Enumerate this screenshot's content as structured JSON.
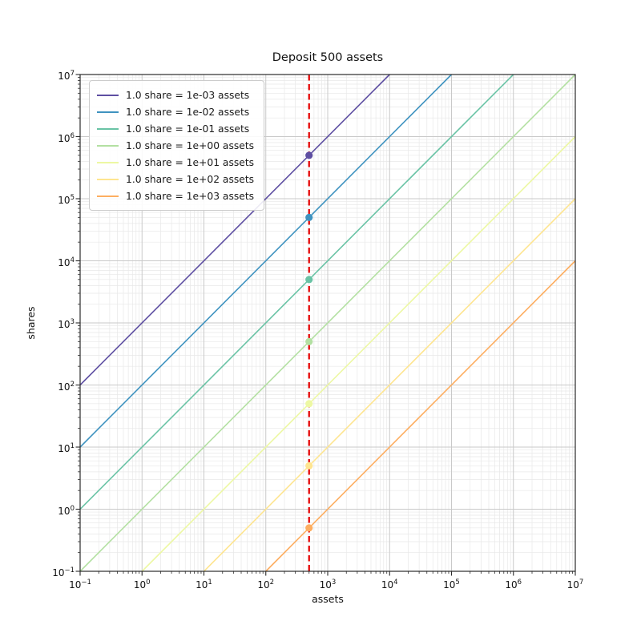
{
  "chart_data": {
    "type": "line",
    "title": "Deposit 500 assets",
    "xlabel": "assets",
    "ylabel": "shares",
    "x_scale": "log",
    "y_scale": "log",
    "xlim": [
      0.1,
      10000000
    ],
    "ylim": [
      0.1,
      10000000
    ],
    "x_tick_exponents": [
      -1,
      0,
      1,
      2,
      3,
      4,
      5,
      6,
      7
    ],
    "y_tick_exponents": [
      -1,
      0,
      1,
      2,
      3,
      4,
      5,
      6,
      7
    ],
    "grid": {
      "major_color": "#c9c9c9",
      "minor_color": "#e8e8e8",
      "minor_on": true
    },
    "frame_color": "#2b2b2b",
    "legend_position": "upper left",
    "deposit_line": {
      "assets": 500,
      "color": "#e50000",
      "style": "dashed"
    },
    "series": [
      {
        "label": "1.0 share = 1e-03 assets",
        "color": "#5e4fa2",
        "rate_exponent": -3,
        "point": {
          "assets": 500,
          "shares": 500000
        }
      },
      {
        "label": "1.0 share = 1e-02 assets",
        "color": "#3f93c0",
        "rate_exponent": -2,
        "point": {
          "assets": 500,
          "shares": 50000
        }
      },
      {
        "label": "1.0 share = 1e-01 assets",
        "color": "#69c3a5",
        "rate_exponent": -1,
        "point": {
          "assets": 500,
          "shares": 5000
        }
      },
      {
        "label": "1.0 share = 1e+00 assets",
        "color": "#b3e0a2",
        "rate_exponent": 0,
        "point": {
          "assets": 500,
          "shares": 500
        }
      },
      {
        "label": "1.0 share = 1e+01 assets",
        "color": "#edf8a3",
        "rate_exponent": 1,
        "point": {
          "assets": 500,
          "shares": 50
        }
      },
      {
        "label": "1.0 share = 1e+02 assets",
        "color": "#fee590",
        "rate_exponent": 2,
        "point": {
          "assets": 500,
          "shares": 5
        }
      },
      {
        "label": "1.0 share = 1e+03 assets",
        "color": "#fdae61",
        "rate_exponent": 3,
        "point": {
          "assets": 500,
          "shares": 0.5
        }
      }
    ]
  }
}
